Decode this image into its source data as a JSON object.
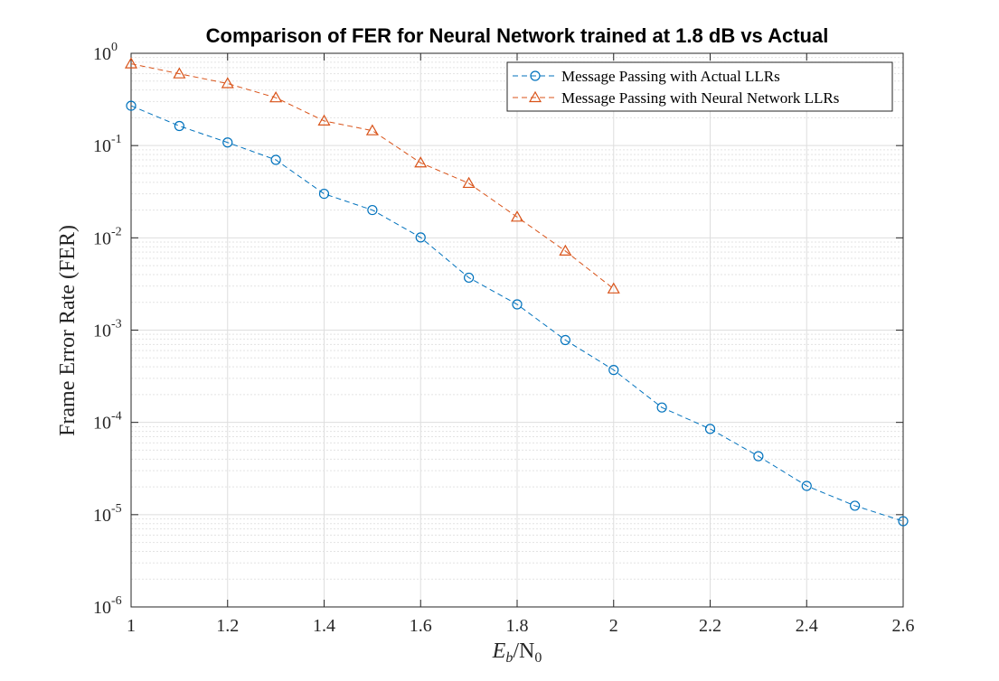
{
  "chart_data": {
    "type": "line",
    "title": "Comparison of FER for Neural Network trained at 1.8 dB vs Actual",
    "xlabel": {
      "main": "E",
      "sub1": "b",
      "sep": "/N",
      "sub2": "0"
    },
    "ylabel": "Frame Error Rate (FER)",
    "x_scale": "linear",
    "y_scale": "log",
    "xlim": [
      1,
      2.6
    ],
    "ylim": [
      1e-06,
      1
    ],
    "x_ticks": [
      1,
      1.2,
      1.4,
      1.6,
      1.8,
      2,
      2.2,
      2.4,
      2.6
    ],
    "x_tick_labels": [
      "1",
      "1.2",
      "1.4",
      "1.6",
      "1.8",
      "2",
      "2.2",
      "2.4",
      "2.6"
    ],
    "y_ticks": [
      {
        "value": 1e-06,
        "base": "10",
        "exp": "-6"
      },
      {
        "value": 1e-05,
        "base": "10",
        "exp": "-5"
      },
      {
        "value": 0.0001,
        "base": "10",
        "exp": "-4"
      },
      {
        "value": 0.001,
        "base": "10",
        "exp": "-3"
      },
      {
        "value": 0.01,
        "base": "10",
        "exp": "-2"
      },
      {
        "value": 0.1,
        "base": "10",
        "exp": "-1"
      },
      {
        "value": 1,
        "base": "10",
        "exp": "0"
      }
    ],
    "grid": true,
    "minor_grid": true,
    "legend_position": "top-right",
    "series": [
      {
        "name": "Message Passing with Actual LLRs",
        "color": "#0072BD",
        "marker": "circle",
        "line_style": "dashed",
        "x": [
          1,
          1.1,
          1.2,
          1.3,
          1.4,
          1.5,
          1.6,
          1.7,
          1.8,
          1.9,
          2,
          2.1,
          2.2,
          2.3,
          2.4,
          2.5,
          2.6
        ],
        "y": [
          0.27,
          0.163,
          0.108,
          0.07,
          0.03,
          0.02,
          0.0101,
          0.0037,
          0.0019,
          0.00078,
          0.00037,
          0.000145,
          8.5e-05,
          4.3e-05,
          2.05e-05,
          1.25e-05,
          8.5e-06
        ]
      },
      {
        "name": "Message Passing with Neural Network LLRs",
        "color": "#D95319",
        "marker": "triangle",
        "line_style": "dashed",
        "x": [
          1,
          1.1,
          1.2,
          1.3,
          1.4,
          1.5,
          1.6,
          1.7,
          1.8,
          1.9,
          2
        ],
        "y": [
          0.77,
          0.6,
          0.47,
          0.33,
          0.185,
          0.145,
          0.065,
          0.039,
          0.0168,
          0.0072,
          0.0028
        ]
      }
    ]
  }
}
